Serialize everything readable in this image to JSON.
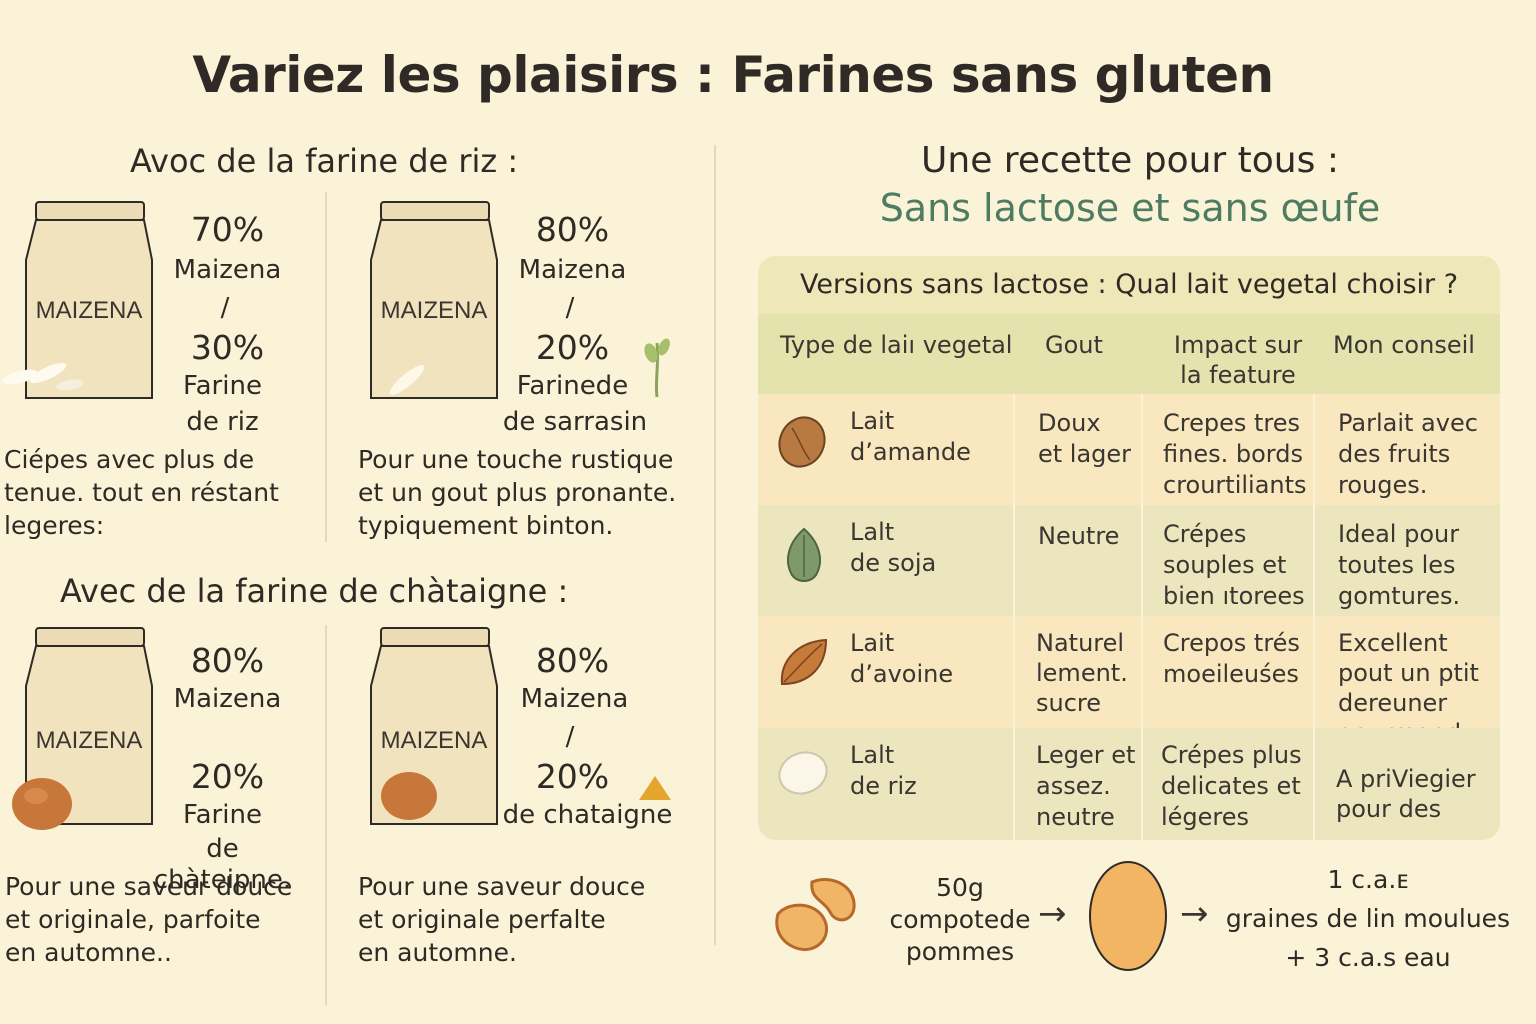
{
  "title": "Variez les plaisirs : Farines sans gluten",
  "rice_section": {
    "title": "Avoc de la farine de riz :",
    "blends": [
      {
        "bag_label": "MAIZENA",
        "pct1": "70%",
        "ing1": "Maizena",
        "sep": "/",
        "pct2": "30%",
        "ing2a": "Farine",
        "ing2b": "de riz",
        "desc": [
          "Ciépes avec plus de",
          "tenue. tout en réstant",
          "legeres:"
        ]
      },
      {
        "bag_label": "MAIZENA",
        "pct1": "80%",
        "ing1": "Maizena",
        "sep": "/",
        "pct2": "20%",
        "ing2a": "Farinede",
        "ing2b": "de sarrasin",
        "desc": [
          "Pour une touche rustique",
          "et un gout plus pronante.",
          "typiquement binton."
        ]
      }
    ]
  },
  "chestnut_section": {
    "title": "Avec de la farine de chàtaigne :",
    "blends": [
      {
        "bag_label": "MAIZENA",
        "pct1": "80%",
        "ing1": "Maizena",
        "sep": "",
        "pct2": "20%",
        "ing2a": "Farine",
        "ing2b": "de chàteipne.",
        "desc": [
          "Pour une saveur douce",
          "et originale, parfoite",
          "en automne.."
        ]
      },
      {
        "bag_label": "MAIZENA",
        "pct1": "80%",
        "ing1": "Maizena",
        "sep": "/",
        "pct2": "20%",
        "ing2a": "",
        "ing2b": "de chataigne",
        "desc": [
          "Pour une saveur douce",
          "et originale  perfalte",
          "en automne."
        ]
      }
    ]
  },
  "recipe": {
    "title": "Une recette pour tous :",
    "subtitle": "Sans lactose et sans œufe"
  },
  "milk_table": {
    "caption": "Versions sans lactose : Qual lait vegetal choisir ?",
    "headers": [
      [
        "Type de laiı vegetal"
      ],
      [
        "Gout"
      ],
      [
        "Impact sur",
        "la feature"
      ],
      [
        "Mon conseil"
      ]
    ],
    "rows": [
      {
        "icon": "almond-icon",
        "name": [
          "Lait",
          "d’amande"
        ],
        "taste": [
          "Doux",
          "et lager"
        ],
        "impact": [
          "Crepes tres",
          "fines. bords",
          "crourtiliants"
        ],
        "advice": [
          "Parlait avec",
          "des fruits",
          "rouges."
        ]
      },
      {
        "icon": "soy-icon",
        "name": [
          "Lalt",
          "de soja"
        ],
        "taste": [
          "Neutre"
        ],
        "impact": [
          "Crépes",
          "souples et",
          "bien ıtorees"
        ],
        "advice": [
          "Ideal pour",
          "toutes les",
          "gomtures."
        ]
      },
      {
        "icon": "oat-leaf-icon",
        "name": [
          "Lait",
          "d’avoine"
        ],
        "taste": [
          "Naturel",
          "lement.",
          "sucre"
        ],
        "impact": [
          "Crepos trés",
          "moeileuśes"
        ],
        "advice": [
          "Excellent",
          "pout un ptit",
          "dereuner",
          "gourmand"
        ]
      },
      {
        "icon": "rice-grain-icon",
        "name": [
          "Lalt",
          "de riz"
        ],
        "taste": [
          "Leger et",
          "assez.",
          "neutre"
        ],
        "impact": [
          "Crépes plus",
          "delicates et",
          "légeres"
        ],
        "advice": [
          "A priViegier",
          "pour des"
        ]
      }
    ]
  },
  "egg_substitute": {
    "left": [
      "50g",
      "compotede",
      "pommes"
    ],
    "right": [
      "1 c.a.ᴇ",
      "graines de lin moulues",
      "+ 3 c.a.s eau"
    ]
  },
  "colors": {
    "background": "#fbf3d8",
    "accent_green": "#4d7c62",
    "table_header": "#e4e2ad"
  }
}
